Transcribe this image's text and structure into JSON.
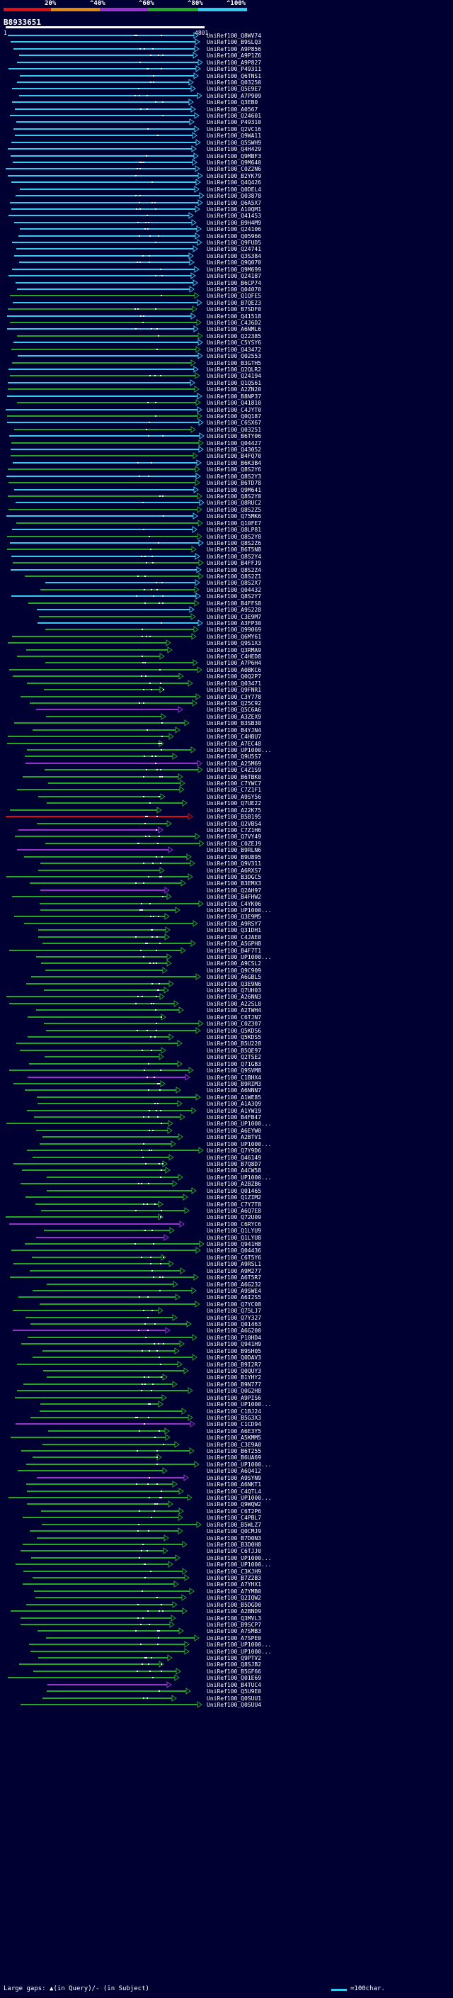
{
  "legend": {
    "ticks": [
      "20%",
      "^40%",
      "^60%",
      "^80%",
      "^100%"
    ],
    "colors": [
      "#dd1111",
      "#dd8811",
      "#9933cc",
      "#22aa22",
      "#33ccee"
    ]
  },
  "query": {
    "name": "B8933651",
    "start": "1",
    "end": "4801"
  },
  "hits": [
    "UniRef100_Q8WV74",
    "UniRef100_B9SLQ3",
    "UniRef100_A9P856",
    "UniRef100_A9P1Z6",
    "UniRef100_A9P827",
    "UniRef100_P49311",
    "UniRef100_Q6TNS1",
    "UniRef100_Q03250",
    "UniRef100_Q5E9E7",
    "UniRef100_A7P909",
    "UniRef100_Q3EB0",
    "UniRef100_A0567",
    "UniRef100_Q24601",
    "UniRef100_P49310",
    "UniRef100_Q2VC16",
    "UniRef100_Q9WA11",
    "UniRef100_Q5SWH9",
    "UniRef100_Q4H429",
    "UniRef100_Q9MBF3",
    "UniRef100_Q9M640",
    "UniRef100_C0Z2N6",
    "UniRef100_B2YK79",
    "UniRef100_Q4Q426",
    "UniRef100_Q0DEL4",
    "UniRef100_Q03878",
    "UniRef100_Q6A5X7",
    "UniRef100_A10QM1",
    "UniRef100_Q41453",
    "UniRef100_B9H4M9",
    "UniRef100_Q24106",
    "UniRef100_Q05966",
    "UniRef100_Q9FUD5",
    "UniRef100_Q24741",
    "UniRef100_Q3S384",
    "UniRef100_Q9Q070",
    "UniRef100_Q9M699",
    "UniRef100_Q24187",
    "UniRef100_B6CP74",
    "UniRef100_Q04070",
    "UniRef100_Q1QFE5",
    "UniRef100_B7QE23",
    "UniRef100_B7SDF0",
    "UniRef100_Q41518",
    "UniRef100_C4J6D2",
    "UniRef100_A6NML6",
    "UniRef100_Q22385",
    "UniRef100_C5YSY6",
    "UniRef100_Q43472",
    "UniRef100_Q02553",
    "UniRef100_B3GTH5",
    "UniRef100_Q2QLR2",
    "UniRef100_Q24194",
    "UniRef100_Q1QS61",
    "UniRef100_A2ZN20",
    "UniRef100_B8NP37",
    "UniRef100_Q41810",
    "UniRef100_C4JYT0",
    "UniRef100_Q0Q187",
    "UniRef100_C6SX67",
    "UniRef100_Q03251",
    "UniRef100_B6TY06",
    "UniRef100_Q04427",
    "UniRef100_Q43052",
    "UniRef100_B4FQ70",
    "UniRef100_B6K3B4",
    "UniRef100_Q8S2Y6",
    "UniRef100_Q8S2Y3",
    "UniRef100_B6TD78",
    "UniRef100_Q9M641",
    "UniRef100_Q8S2Y0",
    "UniRef100_Q8RUC2",
    "UniRef100_Q8S2Z5",
    "UniRef100_Q75MK6",
    "UniRef100_Q10FE7",
    "UniRef100_Q8LP81",
    "UniRef100_Q8S2Y8",
    "UniRef100_Q8S2Z6",
    "UniRef100_B6T5N8",
    "UniRef100_Q8S2Y4",
    "UniRef100_B4FFJ9",
    "UniRef100_Q8S2Z4",
    "UniRef100_Q8S2Z1",
    "UniRef100_Q8S2X7",
    "UniRef100_Q04432",
    "UniRef100_Q8S2Y7",
    "UniRef100_B4FFS8",
    "UniRef100_A9S228",
    "UniRef100_C3E9M7",
    "UniRef100_A3FP30",
    "UniRef100_Q99069",
    "UniRef100_Q6MY61",
    "UniRef100_Q9S1X3",
    "UniRef100_Q3RMA9",
    "UniRef100_C4HED8",
    "UniRef100_A7P6H4",
    "UniRef100_A0BKC6",
    "UniRef100_Q0Q2P7",
    "UniRef100_Q03471",
    "UniRef100_Q9FNR1",
    "UniRef100_C3Y778",
    "UniRef100_Q25C92",
    "UniRef100_Q5C6A6",
    "UniRef100_A3ZEX9",
    "UniRef100_B3SB30",
    "UniRef100_B4YJN4",
    "UniRef100_C4HBU7",
    "UniRef100_A7EC48",
    "UniRef100_UP1000...",
    "UniRef100_Q9U5S7",
    "UniRef100_A25M69",
    "UniRef100_C4Z1S9",
    "UniRef100_B6TBK0",
    "UniRef100_C7YWC7",
    "UniRef100_C7Z1F1",
    "UniRef100_A9SY56",
    "UniRef100_Q7UE22",
    "UniRef100_A22K75",
    "UniRef100_B5B195",
    "UniRef100_Q2VBS4",
    "UniRef100_C7Z1H6",
    "UniRef100_Q7VY49",
    "UniRef100_C0ZEJ9",
    "UniRef100_B9RLN6",
    "UniRef100_B9U895",
    "UniRef100_Q9V311",
    "UniRef100_A6RXS7",
    "UniRef100_B3DGC5",
    "UniRef100_B3EMX3",
    "UniRef100_Q2AH97",
    "UniRef100_B4FHW2",
    "UniRef100_C4YK06",
    "UniRef100_UP1000...",
    "UniRef100_Q3E9M5",
    "UniRef100_A9RSY7",
    "UniRef100_Q31DH1",
    "UniRef100_C4JAE0",
    "UniRef100_A5GPH8",
    "UniRef100_B4F7T1",
    "UniRef100_UP1000...",
    "UniRef100_A9CSL2",
    "UniRef100_Q9C909",
    "UniRef100_A6GBL5",
    "UniRef100_Q3E9N6",
    "UniRef100_Q7UH03",
    "UniRef100_A26NN3",
    "UniRef100_A22SL0",
    "UniRef100_A2TWH4",
    "UniRef100_C6TJN7",
    "UniRef100_C0Z307",
    "UniRef100_Q5KDS6",
    "UniRef100_Q5KDS5",
    "UniRef100_B5U228",
    "UniRef100_B5QE97",
    "UniRef100_Q2TSE2",
    "UniRef100_Q71GB3",
    "UniRef100_Q9SVM8",
    "UniRef100_C1BHX4",
    "UniRef100_B9RIM3",
    "UniRef100_A6NNN7",
    "UniRef100_A1WE85",
    "UniRef100_A1A3Q9",
    "UniRef100_A1YW19",
    "UniRef100_B4FB47",
    "UniRef100_UP1000...",
    "UniRef100_A6EYW0",
    "UniRef100_A2BTV1",
    "UniRef100_UP1000...",
    "UniRef100_Q7Y9D6",
    "UniRef100_Q46149",
    "UniRef100_B7Q8D7",
    "UniRef100_A4CW58",
    "UniRef100_UP1000...",
    "UniRef100_A2BZB6",
    "UniRef100_Q01465",
    "UniRef100_Q1ZIM2",
    "UniRef100_C7Y7T8",
    "UniRef100_A6Q7E8",
    "UniRef100_Q72U09",
    "UniRef100_C6RYC6",
    "UniRef100_Q1LYU9",
    "UniRef100_Q1LYU8",
    "UniRef100_Q941H8",
    "UniRef100_Q04436",
    "UniRef100_C6T5Y6",
    "UniRef100_A9RSL1",
    "UniRef100_A9M277",
    "UniRef100_A6T5R7",
    "UniRef100_A6G232",
    "UniRef100_A9SWE4",
    "UniRef100_A6I2S5",
    "UniRef100_Q7YC08",
    "UniRef100_Q75LJ7",
    "UniRef100_Q7Y327",
    "UniRef100_Q01463",
    "UniRef100_A6G200",
    "UniRef100_P10HD4",
    "UniRef100_Q941H9",
    "UniRef100_B9SH05",
    "UniRef100_Q0DAV3",
    "UniRef100_B9I2R7",
    "UniRef100_Q0QUY3",
    "UniRef100_B1YHY2",
    "UniRef100_B9N777",
    "UniRef100_Q0G2H8",
    "UniRef100_A9PIS6",
    "UniRef100_UP1000...",
    "UniRef100_C1BJ24",
    "UniRef100_B5G3X3",
    "UniRef100_C1CD94",
    "UniRef100_A6E3Y5",
    "UniRef100_A5KMM5",
    "UniRef100_C3E9A0",
    "UniRef100_B6T255",
    "UniRef100_B6UA69",
    "UniRef100_UP1000...",
    "UniRef100_A6Q412",
    "UniRef100_A9SYN9",
    "UniRef100_A6NKT1",
    "UniRef100_C4QTL4",
    "UniRef100_UP1000...",
    "UniRef100_Q9WQW2",
    "UniRef100_C6T2P6",
    "UniRef100_C4PBL7",
    "UniRef100_B5WLZ7",
    "UniRef100_Q0CMJ9",
    "UniRef100_B7D0N3",
    "UniRef100_B3D0H8",
    "UniRef100_C6TJJ0",
    "UniRef100_UP1000...",
    "UniRef100_UP1000...",
    "UniRef100_C3KJH9",
    "UniRef100_B7Z2B3",
    "UniRef100_A7YHX1",
    "UniRef100_A7YMB0",
    "UniRef100_Q2IQW2",
    "UniRef100_B5DGD0",
    "UniRef100_A2BND9",
    "UniRef100_Q3MVL3",
    "UniRef100_B9SCP7",
    "UniRef100_A7SMB3",
    "UniRef100_A7SPE0",
    "UniRef100_UP1000...",
    "UniRef100_UP1000...",
    "UniRef100_Q9PTV2",
    "UniRef100_Q8SJB2",
    "UniRef100_B5GF66",
    "UniRef100_Q01E69",
    "UniRef100_B4TUC4",
    "UniRef100_Q5U9E0",
    "UniRef100_Q0SUU1",
    "UniRef100_Q0SUU4"
  ],
  "footer": {
    "gap_note": "Large gaps: ▲(in Query)/- (in Subject)",
    "scale_note": "=100char."
  }
}
